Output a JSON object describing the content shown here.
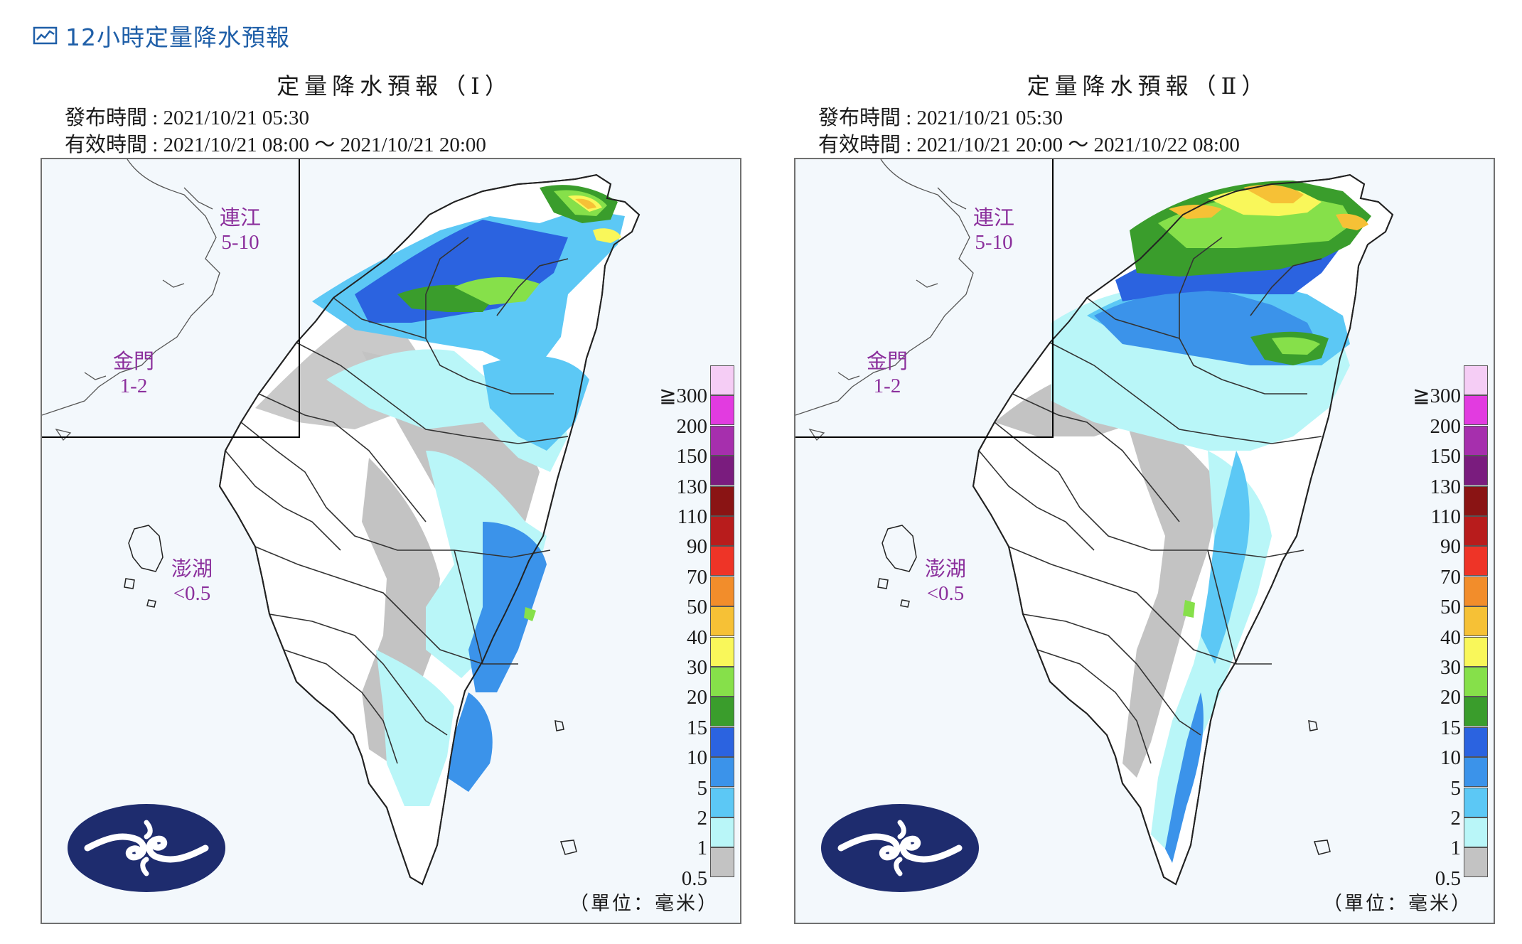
{
  "header": {
    "icon": "line-chart-icon",
    "title": "12小時定量降水預報"
  },
  "panels": [
    {
      "title": "定量降水預報（Ⅰ）",
      "issue_line": "發布時間 : 2021/10/21 05:30",
      "valid_line": "有效時間 : 2021/10/21 08:00 ～ 2021/10/21 20:00",
      "islands": {
        "lienchiang": {
          "name": "連江",
          "value": "5-10"
        },
        "kinmen": {
          "name": "金門",
          "value": "1-2"
        },
        "penghu": {
          "name": "澎湖",
          "value": "<0.5"
        }
      },
      "unit": "（單位：毫米）"
    },
    {
      "title": "定量降水預報（Ⅱ）",
      "issue_line": "發布時間 : 2021/10/21 05:30",
      "valid_line": "有效時間 : 2021/10/21 20:00 ～ 2021/10/22 08:00",
      "islands": {
        "lienchiang": {
          "name": "連江",
          "value": "5-10"
        },
        "kinmen": {
          "name": "金門",
          "value": "1-2"
        },
        "penghu": {
          "name": "澎湖",
          "value": "<0.5"
        }
      },
      "unit": "（單位：毫米）"
    }
  ],
  "legend": [
    {
      "label": "≧300",
      "color": "#f5cdf5"
    },
    {
      "label": "200",
      "color": "#e23be0"
    },
    {
      "label": "150",
      "color": "#a62fad"
    },
    {
      "label": "130",
      "color": "#7a1c7e"
    },
    {
      "label": "110",
      "color": "#8a1414"
    },
    {
      "label": "90",
      "color": "#b81c1c"
    },
    {
      "label": "70",
      "color": "#ee3427"
    },
    {
      "label": "50",
      "color": "#f28d2b"
    },
    {
      "label": "40",
      "color": "#f6c136"
    },
    {
      "label": "30",
      "color": "#f9f75a"
    },
    {
      "label": "20",
      "color": "#86e04a"
    },
    {
      "label": "15",
      "color": "#3a9d2c"
    },
    {
      "label": "10",
      "color": "#2b63e0"
    },
    {
      "label": "5",
      "color": "#3b93ea"
    },
    {
      "label": "2",
      "color": "#5cc8f5"
    },
    {
      "label": "1",
      "color": "#b9f6f8"
    },
    {
      "label": "0.5",
      "color": "#c3c3c3"
    }
  ],
  "logo": {
    "icon": "cwb-cloud-logo",
    "color": "#1e2c6e"
  }
}
